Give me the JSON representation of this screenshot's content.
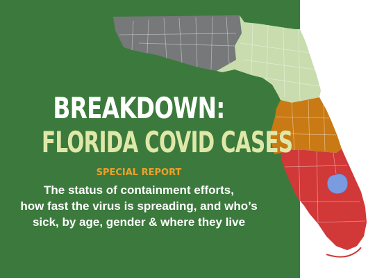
{
  "headline": {
    "line1": "BREAKDOWN:",
    "line2": "FLORIDA COVID CASES"
  },
  "kicker": "SPECIAL REPORT",
  "subtitle": {
    "line1": "The status of containment efforts,",
    "line2": "how fast the virus is spreading, and who’s",
    "line3": "sick, by age, gender & where they live"
  },
  "colors": {
    "background_green": "#3b7a3c",
    "panhandle_region": "#76787a",
    "north_region": "#c8dcae",
    "central_region": "#c97a14",
    "south_region": "#d13838",
    "lake_okeechobee": "#7a9be0",
    "headline_line1": "#ffffff",
    "headline_line2": "#dfe8a8",
    "kicker": "#f0a02a"
  }
}
